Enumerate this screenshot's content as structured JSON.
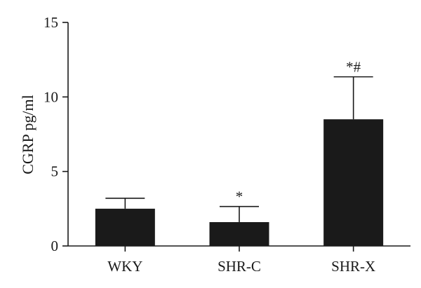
{
  "chart_data": {
    "type": "bar",
    "title": "",
    "xlabel": "",
    "ylabel": "CGRP pg/ml",
    "ylim": [
      0,
      15
    ],
    "yticks": [
      0,
      5,
      10,
      15
    ],
    "categories": [
      "WKY",
      "SHR-C",
      "SHR-X"
    ],
    "values": [
      2.5,
      1.6,
      8.5
    ],
    "errors": [
      0.7,
      1.05,
      2.85
    ],
    "annotations": [
      "",
      "*",
      "*#"
    ],
    "bar_color": "#1a1a1a",
    "grid": false,
    "legend": "none"
  }
}
